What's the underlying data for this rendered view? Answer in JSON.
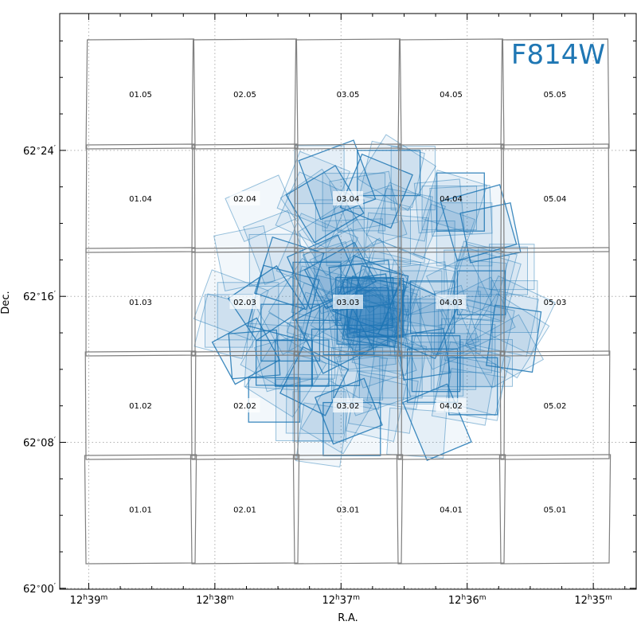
{
  "chart_data": {
    "type": "scatter",
    "title": "",
    "xlabel": "R.A.",
    "ylabel": "Dec.",
    "filter_label": "F814W",
    "colors": {
      "footprint": "#1f77b4",
      "grid": "#7f7f7f",
      "frame": "#000000"
    },
    "xlim_minutes_ra": [
      39.23,
      34.66
    ],
    "ylim_arcmin_dec": [
      -0.05,
      31.5
    ],
    "x_ticks": [
      {
        "value": 39,
        "h": "12",
        "m": "39"
      },
      {
        "value": 38,
        "h": "12",
        "m": "38"
      },
      {
        "value": 37,
        "h": "12",
        "m": "37"
      },
      {
        "value": 36,
        "h": "12",
        "m": "36"
      },
      {
        "value": 35,
        "h": "12",
        "m": "35"
      }
    ],
    "y_ticks": [
      {
        "value": 0,
        "deg": "62",
        "min": "00"
      },
      {
        "value": 8,
        "deg": "62",
        "min": "08"
      },
      {
        "value": 16,
        "deg": "62",
        "min": "16"
      },
      {
        "value": 24,
        "deg": "62",
        "min": "24"
      }
    ],
    "grid": "dotted",
    "tiles": [
      {
        "id": "01.01",
        "col": 1,
        "row": 1
      },
      {
        "id": "02.01",
        "col": 2,
        "row": 1
      },
      {
        "id": "03.01",
        "col": 3,
        "row": 1
      },
      {
        "id": "04.01",
        "col": 4,
        "row": 1
      },
      {
        "id": "05.01",
        "col": 5,
        "row": 1
      },
      {
        "id": "01.02",
        "col": 1,
        "row": 2
      },
      {
        "id": "02.02",
        "col": 2,
        "row": 2
      },
      {
        "id": "03.02",
        "col": 3,
        "row": 2
      },
      {
        "id": "04.02",
        "col": 4,
        "row": 2
      },
      {
        "id": "05.02",
        "col": 5,
        "row": 2
      },
      {
        "id": "01.03",
        "col": 1,
        "row": 3
      },
      {
        "id": "02.03",
        "col": 2,
        "row": 3
      },
      {
        "id": "03.03",
        "col": 3,
        "row": 3
      },
      {
        "id": "04.03",
        "col": 4,
        "row": 3
      },
      {
        "id": "05.03",
        "col": 5,
        "row": 3
      },
      {
        "id": "01.04",
        "col": 1,
        "row": 4
      },
      {
        "id": "02.04",
        "col": 2,
        "row": 4
      },
      {
        "id": "03.04",
        "col": 3,
        "row": 4
      },
      {
        "id": "04.04",
        "col": 4,
        "row": 4
      },
      {
        "id": "05.04",
        "col": 5,
        "row": 4
      },
      {
        "id": "01.05",
        "col": 1,
        "row": 5
      },
      {
        "id": "02.05",
        "col": 2,
        "row": 5
      },
      {
        "id": "03.05",
        "col": 3,
        "row": 5
      },
      {
        "id": "04.05",
        "col": 4,
        "row": 5
      },
      {
        "id": "05.05",
        "col": 5,
        "row": 5
      }
    ],
    "footprints": {
      "description_count": 160,
      "center_ra_minutes": 36.75,
      "center_dec_arcmin": 15.5,
      "seed": 7
    }
  }
}
